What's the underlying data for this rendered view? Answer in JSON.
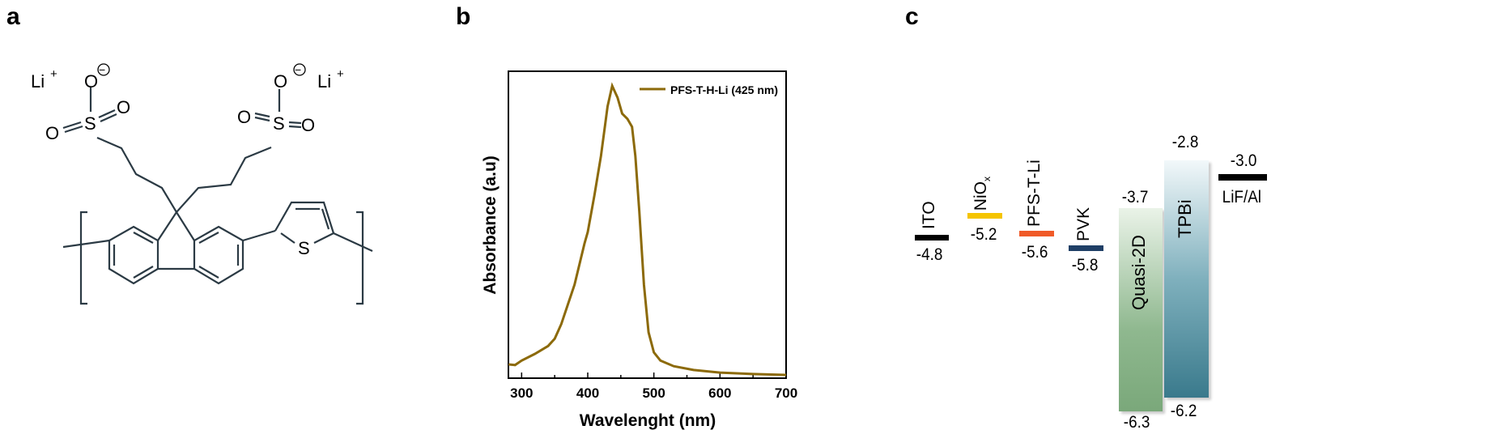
{
  "panels": {
    "a": "a",
    "b": "b",
    "c": "c"
  },
  "panel_a": {
    "atoms": {
      "li_left": "Li",
      "li_right": "Li",
      "plus": "+",
      "o_minus_left": "O",
      "o_minus_right": "O",
      "minus": "−",
      "o": "O",
      "s": "S",
      "s_thiophene": "S"
    }
  },
  "chart_data": {
    "type": "line",
    "title": "",
    "xlabel": "Wavelenght (nm)",
    "ylabel": "Absorbance (a.u)",
    "xlim": [
      280,
      700
    ],
    "ylim": [
      0,
      1.05
    ],
    "xticks": [
      300,
      400,
      500,
      600,
      700
    ],
    "grid": false,
    "legend_position": "top-right",
    "series": [
      {
        "name": "PFS-T-H-Li (425 nm)",
        "color": "#8c6a0a",
        "x": [
          280,
          290,
          300,
          320,
          340,
          350,
          360,
          380,
          395,
          400,
          410,
          420,
          430,
          437,
          445,
          452,
          460,
          467,
          472,
          478,
          485,
          492,
          500,
          510,
          530,
          560,
          600,
          650,
          700
        ],
        "y": [
          0.047,
          0.045,
          0.06,
          0.083,
          0.11,
          0.135,
          0.185,
          0.32,
          0.46,
          0.5,
          0.625,
          0.76,
          0.93,
          1.0,
          0.96,
          0.905,
          0.887,
          0.86,
          0.76,
          0.57,
          0.32,
          0.157,
          0.088,
          0.06,
          0.041,
          0.028,
          0.019,
          0.014,
          0.011
        ]
      }
    ]
  },
  "energy_diagram": {
    "layers": [
      {
        "name": "ITO",
        "levels": [
          "-4.8"
        ],
        "color": "#000000"
      },
      {
        "name": "NiO",
        "sub": "x",
        "levels": [
          "-5.2"
        ],
        "color": "#f5c400"
      },
      {
        "name": "PFS-T-Li",
        "levels": [
          "-5.6"
        ],
        "color": "#f05a28"
      },
      {
        "name": "PVK",
        "levels": [
          "-5.8"
        ],
        "color": "#1f3f66"
      },
      {
        "name": "Quasi-2D",
        "levels": [
          "-3.7",
          "-6.3"
        ],
        "color": "#8fb88f"
      },
      {
        "name": "TPBi",
        "levels": [
          "-2.8",
          "-6.2"
        ],
        "color": "#3f7f91"
      },
      {
        "name": "LiF/Al",
        "levels": [
          "-3.0"
        ],
        "color": "#000000"
      }
    ]
  }
}
